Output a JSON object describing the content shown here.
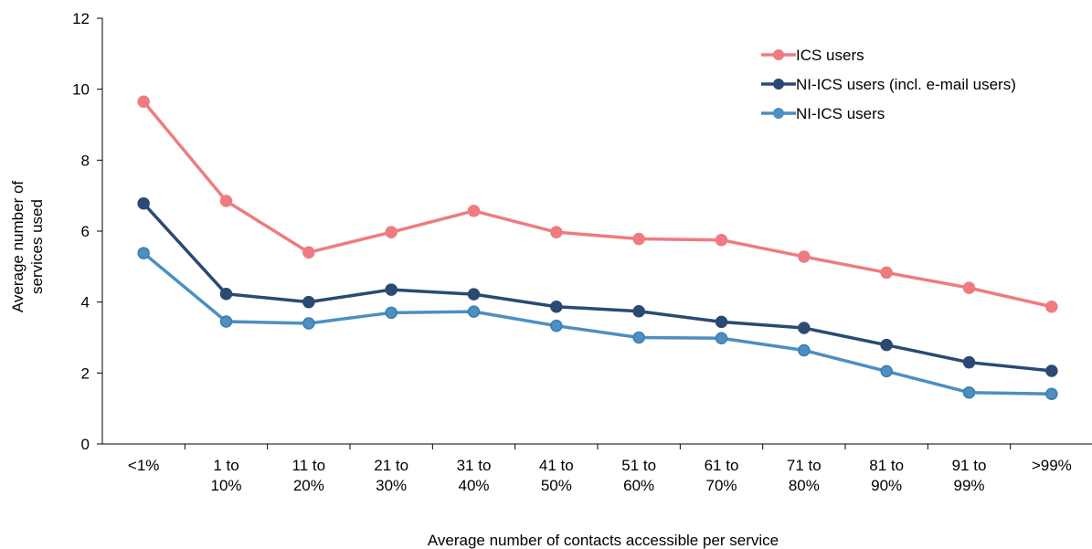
{
  "chart_data": {
    "type": "line",
    "xlabel": "Average number of contacts accessible per service",
    "ylabel": "Average number of services used",
    "ylim": [
      0,
      12
    ],
    "yticks": [
      0,
      2,
      4,
      6,
      8,
      10,
      12
    ],
    "grid": false,
    "legend_position": "top-right",
    "categories": [
      [
        "<1%"
      ],
      [
        "1 to",
        "10%"
      ],
      [
        "11 to",
        "20%"
      ],
      [
        "21 to",
        "30%"
      ],
      [
        "31 to",
        "40%"
      ],
      [
        "41 to",
        "50%"
      ],
      [
        "51 to",
        "60%"
      ],
      [
        "61 to",
        "70%"
      ],
      [
        "71 to",
        "80%"
      ],
      [
        "81 to",
        "90%"
      ],
      [
        "91 to",
        "99%"
      ],
      [
        ">99%"
      ]
    ],
    "series": [
      {
        "name": "ICS users",
        "color": "#ee7b80",
        "values": [
          9.65,
          6.85,
          5.4,
          5.97,
          6.57,
          5.97,
          5.78,
          5.75,
          5.28,
          4.83,
          4.4,
          3.87
        ]
      },
      {
        "name": "NI-ICS users (incl. e-mail users)",
        "color": "#2a4a73",
        "values": [
          6.78,
          4.23,
          4.0,
          4.35,
          4.22,
          3.87,
          3.74,
          3.44,
          3.27,
          2.79,
          2.3,
          2.06
        ]
      },
      {
        "name": "NI-ICS users",
        "color": "#4c8fc0",
        "values": [
          5.38,
          3.45,
          3.4,
          3.7,
          3.73,
          3.33,
          3.0,
          2.98,
          2.64,
          2.05,
          1.45,
          1.41
        ]
      }
    ]
  }
}
